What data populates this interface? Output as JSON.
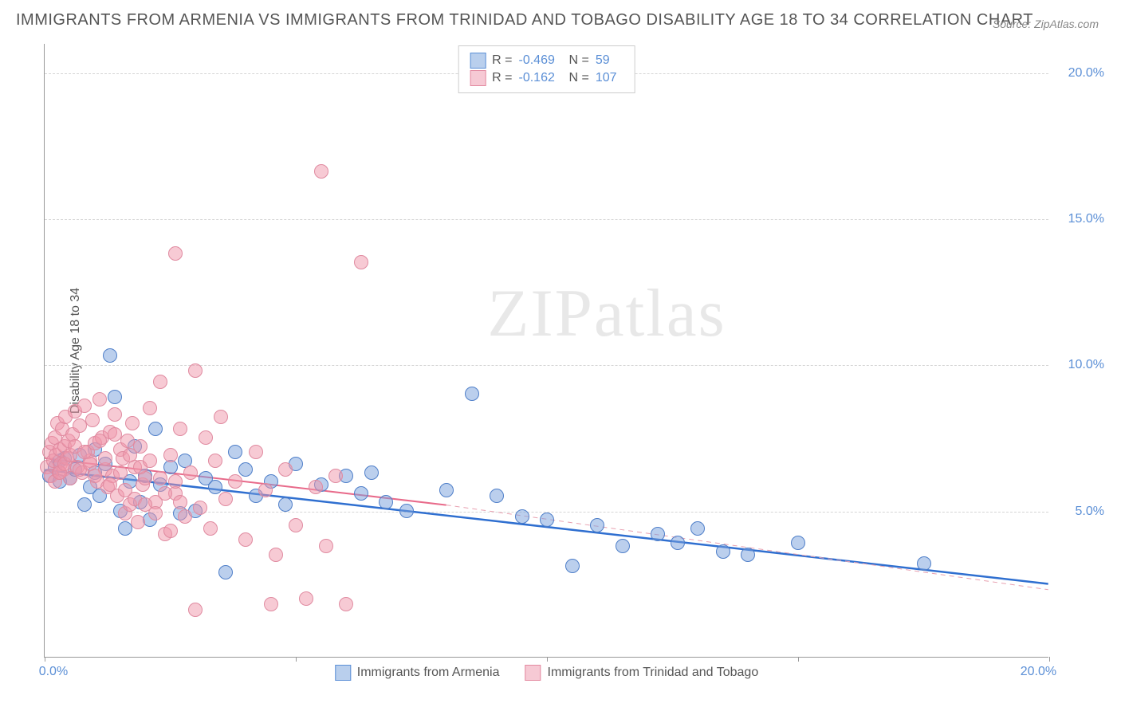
{
  "title": "IMMIGRANTS FROM ARMENIA VS IMMIGRANTS FROM TRINIDAD AND TOBAGO DISABILITY AGE 18 TO 34 CORRELATION CHART",
  "source": "Source: ZipAtlas.com",
  "y_axis_label": "Disability Age 18 to 34",
  "watermark_a": "ZIP",
  "watermark_b": "atlas",
  "chart": {
    "type": "scatter",
    "xlim": [
      0,
      20
    ],
    "ylim": [
      0,
      21
    ],
    "x_ticks": [
      0,
      5,
      10,
      15,
      20
    ],
    "x_tick_labels": [
      "0.0%",
      "",
      "",
      "",
      "20.0%"
    ],
    "y_ticks": [
      5,
      10,
      15,
      20
    ],
    "y_tick_labels": [
      "5.0%",
      "10.0%",
      "15.0%",
      "20.0%"
    ],
    "background_color": "#ffffff",
    "grid_color": "#d5d5d5",
    "axis_label_color": "#5b8fd6",
    "marker_radius": 9,
    "series": [
      {
        "name": "Immigrants from Armenia",
        "fill": "rgba(120,160,220,0.5)",
        "stroke": "#4f7fc9",
        "swatch_fill": "#b9cfed",
        "swatch_border": "#5b8fd6",
        "r": "-0.469",
        "n": "59",
        "trend": {
          "x1": 0,
          "y1": 6.4,
          "x2": 20,
          "y2": 2.5,
          "color": "#2f6fd0",
          "width": 2.5,
          "dash": ""
        },
        "points": [
          [
            0.1,
            6.2
          ],
          [
            0.2,
            6.5
          ],
          [
            0.3,
            6.0
          ],
          [
            0.4,
            6.8
          ],
          [
            0.5,
            6.1
          ],
          [
            0.6,
            6.4
          ],
          [
            0.7,
            6.9
          ],
          [
            0.8,
            5.2
          ],
          [
            0.9,
            5.8
          ],
          [
            1.0,
            6.3
          ],
          [
            1.1,
            5.5
          ],
          [
            1.2,
            6.6
          ],
          [
            1.3,
            10.3
          ],
          [
            1.4,
            8.9
          ],
          [
            1.5,
            5.0
          ],
          [
            1.6,
            4.4
          ],
          [
            1.7,
            6.0
          ],
          [
            1.8,
            7.2
          ],
          [
            1.9,
            5.3
          ],
          [
            2.0,
            6.2
          ],
          [
            2.1,
            4.7
          ],
          [
            2.2,
            7.8
          ],
          [
            2.3,
            5.9
          ],
          [
            2.5,
            6.5
          ],
          [
            2.7,
            4.9
          ],
          [
            2.8,
            6.7
          ],
          [
            3.0,
            5.0
          ],
          [
            3.2,
            6.1
          ],
          [
            3.4,
            5.8
          ],
          [
            3.6,
            2.9
          ],
          [
            3.8,
            7.0
          ],
          [
            4.0,
            6.4
          ],
          [
            4.2,
            5.5
          ],
          [
            4.5,
            6.0
          ],
          [
            4.8,
            5.2
          ],
          [
            5.0,
            6.6
          ],
          [
            5.5,
            5.9
          ],
          [
            6.0,
            6.2
          ],
          [
            6.3,
            5.6
          ],
          [
            6.8,
            5.3
          ],
          [
            7.2,
            5.0
          ],
          [
            8.0,
            5.7
          ],
          [
            8.5,
            9.0
          ],
          [
            9.0,
            5.5
          ],
          [
            9.5,
            4.8
          ],
          [
            10.0,
            4.7
          ],
          [
            10.5,
            3.1
          ],
          [
            11.0,
            4.5
          ],
          [
            11.5,
            3.8
          ],
          [
            12.2,
            4.2
          ],
          [
            12.6,
            3.9
          ],
          [
            13.0,
            4.4
          ],
          [
            13.5,
            3.6
          ],
          [
            14.0,
            3.5
          ],
          [
            15.0,
            3.9
          ],
          [
            17.5,
            3.2
          ],
          [
            6.5,
            6.3
          ],
          [
            0.3,
            6.7
          ],
          [
            1.0,
            7.1
          ]
        ]
      },
      {
        "name": "Immigrants from Trinidad and Tobago",
        "fill": "rgba(240,150,170,0.5)",
        "stroke": "#e08aa0",
        "swatch_fill": "#f6c9d4",
        "swatch_border": "#e389a0",
        "r": "-0.162",
        "n": "107",
        "trend": {
          "x1": 0,
          "y1": 6.8,
          "x2": 8,
          "y2": 5.2,
          "color": "#e86a8a",
          "width": 2,
          "dash": ""
        },
        "trend_ext": {
          "x1": 8,
          "y1": 5.2,
          "x2": 20,
          "y2": 2.3,
          "color": "#e8a0b0",
          "width": 1,
          "dash": "6 5"
        },
        "points": [
          [
            0.05,
            6.5
          ],
          [
            0.1,
            7.0
          ],
          [
            0.12,
            6.2
          ],
          [
            0.15,
            7.3
          ],
          [
            0.18,
            6.7
          ],
          [
            0.2,
            7.5
          ],
          [
            0.22,
            6.9
          ],
          [
            0.25,
            8.0
          ],
          [
            0.28,
            6.3
          ],
          [
            0.3,
            7.1
          ],
          [
            0.32,
            6.6
          ],
          [
            0.35,
            7.8
          ],
          [
            0.38,
            6.4
          ],
          [
            0.4,
            7.2
          ],
          [
            0.42,
            8.2
          ],
          [
            0.45,
            6.8
          ],
          [
            0.48,
            7.4
          ],
          [
            0.5,
            6.1
          ],
          [
            0.55,
            7.6
          ],
          [
            0.6,
            8.4
          ],
          [
            0.65,
            6.5
          ],
          [
            0.7,
            7.9
          ],
          [
            0.75,
            6.3
          ],
          [
            0.8,
            8.6
          ],
          [
            0.85,
            7.0
          ],
          [
            0.9,
            6.7
          ],
          [
            0.95,
            8.1
          ],
          [
            1.0,
            7.3
          ],
          [
            1.05,
            6.0
          ],
          [
            1.1,
            8.8
          ],
          [
            1.15,
            7.5
          ],
          [
            1.2,
            6.4
          ],
          [
            1.25,
            5.8
          ],
          [
            1.3,
            7.7
          ],
          [
            1.35,
            6.2
          ],
          [
            1.4,
            8.3
          ],
          [
            1.45,
            5.5
          ],
          [
            1.5,
            7.1
          ],
          [
            1.55,
            6.8
          ],
          [
            1.6,
            4.9
          ],
          [
            1.65,
            7.4
          ],
          [
            1.7,
            5.2
          ],
          [
            1.75,
            8.0
          ],
          [
            1.8,
            6.5
          ],
          [
            1.85,
            4.6
          ],
          [
            1.9,
            7.2
          ],
          [
            1.95,
            5.9
          ],
          [
            2.0,
            6.1
          ],
          [
            2.1,
            8.5
          ],
          [
            2.2,
            5.3
          ],
          [
            2.3,
            9.4
          ],
          [
            2.4,
            4.2
          ],
          [
            2.5,
            6.9
          ],
          [
            2.6,
            5.6
          ],
          [
            2.7,
            7.8
          ],
          [
            2.8,
            4.8
          ],
          [
            2.9,
            6.3
          ],
          [
            3.0,
            9.8
          ],
          [
            3.1,
            5.1
          ],
          [
            3.2,
            7.5
          ],
          [
            3.3,
            4.4
          ],
          [
            3.4,
            6.7
          ],
          [
            3.5,
            8.2
          ],
          [
            3.6,
            5.4
          ],
          [
            3.8,
            6.0
          ],
          [
            4.0,
            4.0
          ],
          [
            4.2,
            7.0
          ],
          [
            4.4,
            5.7
          ],
          [
            4.6,
            3.5
          ],
          [
            4.8,
            6.4
          ],
          [
            5.0,
            4.5
          ],
          [
            5.2,
            2.0
          ],
          [
            5.4,
            5.8
          ],
          [
            5.6,
            3.8
          ],
          [
            5.8,
            6.2
          ],
          [
            6.0,
            1.8
          ],
          [
            2.6,
            13.8
          ],
          [
            5.5,
            16.6
          ],
          [
            6.3,
            13.5
          ],
          [
            3.0,
            1.6
          ],
          [
            4.5,
            1.8
          ],
          [
            0.2,
            6.0
          ],
          [
            0.3,
            6.3
          ],
          [
            0.4,
            6.6
          ],
          [
            0.5,
            6.9
          ],
          [
            0.6,
            7.2
          ],
          [
            0.7,
            6.4
          ],
          [
            0.8,
            7.0
          ],
          [
            0.9,
            6.6
          ],
          [
            1.0,
            6.2
          ],
          [
            1.1,
            7.4
          ],
          [
            1.2,
            6.8
          ],
          [
            1.3,
            5.9
          ],
          [
            1.4,
            7.6
          ],
          [
            1.5,
            6.3
          ],
          [
            1.6,
            5.7
          ],
          [
            1.7,
            6.9
          ],
          [
            1.8,
            5.4
          ],
          [
            1.9,
            6.5
          ],
          [
            2.0,
            5.2
          ],
          [
            2.1,
            6.7
          ],
          [
            2.2,
            4.9
          ],
          [
            2.3,
            6.1
          ],
          [
            2.4,
            5.6
          ],
          [
            2.5,
            4.3
          ],
          [
            2.6,
            6.0
          ],
          [
            2.7,
            5.3
          ]
        ]
      }
    ]
  }
}
